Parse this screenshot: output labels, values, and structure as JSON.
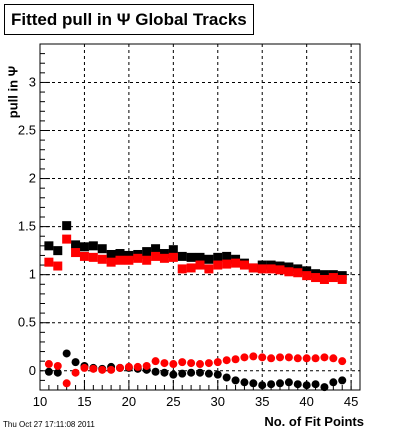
{
  "title": "Fitted pull in  Ψ   Global Tracks",
  "chart_data": {
    "type": "scatter",
    "title": "Fitted pull in  Ψ   Global Tracks",
    "xlabel": "No. of Fit Points",
    "ylabel": "pull in  Ψ",
    "xlim": [
      10,
      46
    ],
    "ylim": [
      -0.2,
      3.4
    ],
    "xticks": [
      10,
      15,
      20,
      25,
      30,
      35,
      40,
      45
    ],
    "yticks": [
      0,
      0.5,
      1,
      1.5,
      2,
      2.5,
      3
    ],
    "ytick_labels": [
      "0",
      "0.5",
      "1",
      "1.5",
      "2",
      "2.5",
      "3"
    ],
    "grid": true,
    "x": [
      11,
      12,
      13,
      14,
      15,
      16,
      17,
      18,
      19,
      20,
      21,
      22,
      23,
      24,
      25,
      26,
      27,
      28,
      29,
      30,
      31,
      32,
      33,
      34,
      35,
      36,
      37,
      38,
      39,
      40,
      41,
      42,
      43,
      44
    ],
    "series": [
      {
        "marker": "square",
        "color": "#000000",
        "values": [
          1.3,
          1.25,
          1.51,
          1.31,
          1.29,
          1.3,
          1.27,
          1.21,
          1.22,
          1.2,
          1.21,
          1.24,
          1.27,
          1.22,
          1.26,
          1.19,
          1.18,
          1.18,
          1.16,
          1.18,
          1.19,
          1.16,
          1.12,
          1.07,
          1.1,
          1.1,
          1.09,
          1.08,
          1.06,
          1.04,
          1.01,
          1.0,
          1.0,
          0.99
        ]
      },
      {
        "marker": "square",
        "color": "#ff0000",
        "values": [
          1.13,
          1.09,
          1.37,
          1.23,
          1.19,
          1.18,
          1.16,
          1.13,
          1.15,
          1.15,
          1.17,
          1.15,
          1.19,
          1.17,
          1.18,
          1.06,
          1.07,
          1.1,
          1.06,
          1.1,
          1.11,
          1.12,
          1.1,
          1.07,
          1.06,
          1.06,
          1.05,
          1.03,
          1.02,
          0.99,
          0.97,
          0.95,
          0.97,
          0.95
        ]
      },
      {
        "marker": "circle",
        "color": "#000000",
        "values": [
          -0.01,
          -0.02,
          0.18,
          0.09,
          0.05,
          0.03,
          0.02,
          0.04,
          0.03,
          0.03,
          0.02,
          0.01,
          -0.01,
          -0.02,
          -0.04,
          -0.03,
          -0.02,
          -0.02,
          -0.03,
          -0.04,
          -0.07,
          -0.1,
          -0.12,
          -0.13,
          -0.15,
          -0.14,
          -0.13,
          -0.12,
          -0.14,
          -0.15,
          -0.14,
          -0.17,
          -0.12,
          -0.1
        ]
      },
      {
        "marker": "circle",
        "color": "#ff0000",
        "values": [
          0.07,
          0.05,
          -0.13,
          -0.02,
          0.03,
          0.02,
          0.01,
          0.01,
          0.03,
          0.04,
          0.04,
          0.05,
          0.1,
          0.08,
          0.07,
          0.09,
          0.08,
          0.07,
          0.08,
          0.09,
          0.11,
          0.12,
          0.14,
          0.15,
          0.14,
          0.13,
          0.14,
          0.14,
          0.13,
          0.13,
          0.13,
          0.14,
          0.13,
          0.1
        ]
      }
    ]
  },
  "footer": "Thu Oct 27 17:11:08 2011"
}
